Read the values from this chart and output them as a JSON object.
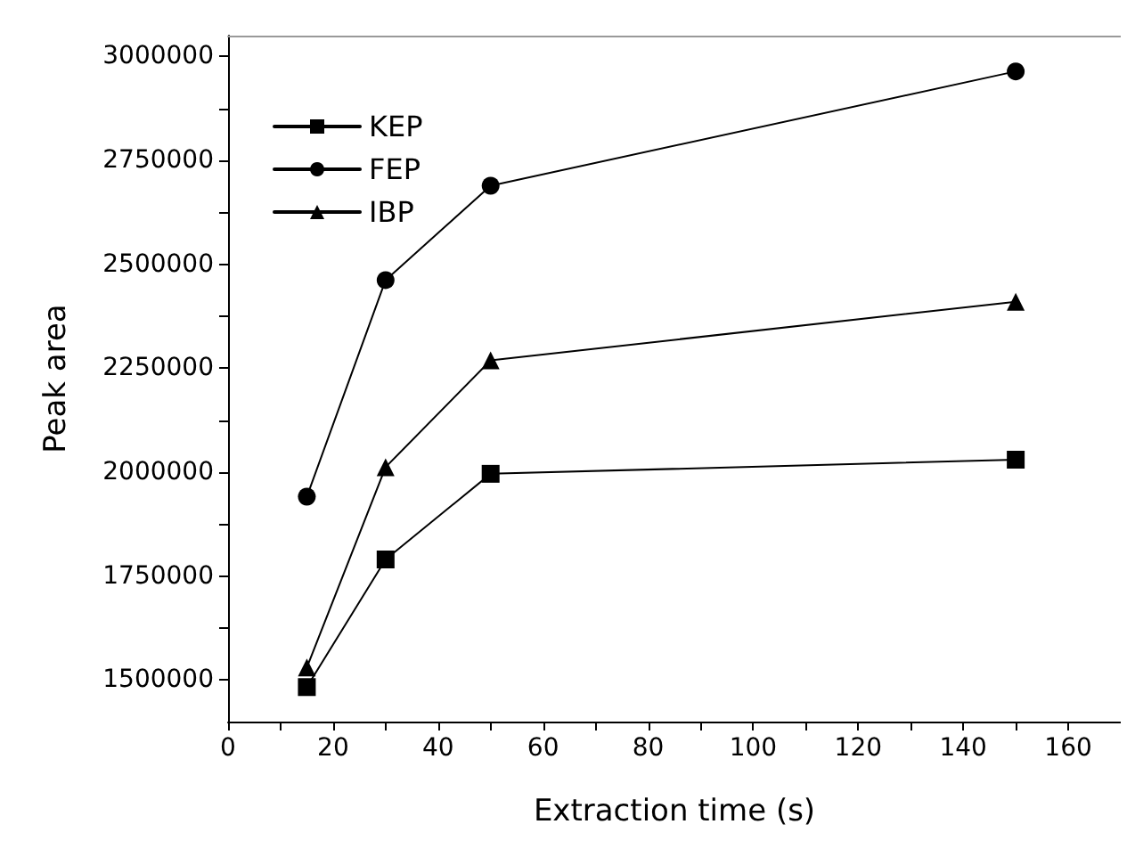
{
  "chart_data": {
    "type": "line",
    "xlabel": "Extraction time (s)",
    "ylabel": "Peak area",
    "x": [
      15,
      30,
      50,
      150
    ],
    "series": [
      {
        "name": "KEP",
        "color": "#000000",
        "marker": "square",
        "values": [
          1483000,
          1790000,
          1996000,
          2030000
        ]
      },
      {
        "name": "FEP",
        "color": "#000000",
        "marker": "circle",
        "values": [
          1941000,
          2462000,
          2689000,
          2964000
        ]
      },
      {
        "name": "IBP",
        "color": "#000000",
        "marker": "triangle",
        "values": [
          1530000,
          2012000,
          2269000,
          2410000
        ]
      }
    ],
    "xlim": [
      0,
      170
    ],
    "xticks": [
      0,
      20,
      40,
      60,
      80,
      100,
      120,
      140,
      160
    ],
    "ylim": [
      1400000,
      3050000
    ],
    "yticks": [
      1500000,
      1750000,
      2000000,
      2250000,
      2500000,
      2750000,
      3000000
    ],
    "grid": false,
    "legend": "top left",
    "line_style": "solid"
  }
}
